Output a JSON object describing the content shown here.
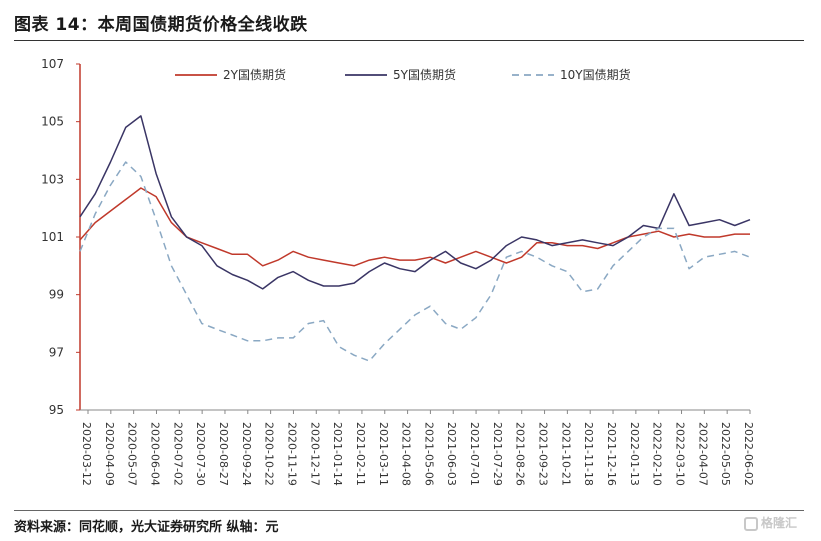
{
  "figure_title": "图表 14：本周国债期货价格全线收跌",
  "source_note": "资料来源：同花顺，光大证券研究所 纵轴：元",
  "watermark": "格隆汇",
  "chart_data": {
    "type": "line",
    "title": "",
    "xlabel": "",
    "ylabel": "",
    "ylim": [
      95,
      107
    ],
    "yticks": [
      95,
      97,
      99,
      101,
      103,
      105,
      107
    ],
    "x_tick_labels": [
      "2020-03-12",
      "2020-04-09",
      "2020-05-07",
      "2020-06-04",
      "2020-07-02",
      "2020-07-30",
      "2020-08-27",
      "2020-09-24",
      "2020-10-22",
      "2020-11-19",
      "2020-12-17",
      "2021-01-14",
      "2021-02-11",
      "2021-03-11",
      "2021-04-08",
      "2021-05-06",
      "2021-06-03",
      "2021-07-01",
      "2021-07-29",
      "2021-08-26",
      "2021-09-23",
      "2021-10-21",
      "2021-11-18",
      "2021-12-16",
      "2022-01-13",
      "2022-02-10",
      "2022-03-10",
      "2022-04-07",
      "2022-05-05",
      "2022-06-02"
    ],
    "grid": false,
    "legend_position": "top",
    "series": [
      {
        "name": "2Y国债期货",
        "color": "#c0392b",
        "style": "solid",
        "values": [
          100.9,
          101.5,
          101.9,
          102.3,
          102.7,
          102.4,
          101.5,
          101.0,
          100.8,
          100.6,
          100.4,
          100.4,
          100.0,
          100.2,
          100.5,
          100.3,
          100.2,
          100.1,
          100.0,
          100.2,
          100.3,
          100.2,
          100.2,
          100.3,
          100.1,
          100.3,
          100.5,
          100.3,
          100.1,
          100.3,
          100.8,
          100.8,
          100.7,
          100.7,
          100.6,
          100.8,
          101.0,
          101.1,
          101.2,
          101.0,
          101.1,
          101.0,
          101.0,
          101.1,
          101.1
        ]
      },
      {
        "name": "5Y国债期货",
        "color": "#3a3565",
        "style": "solid",
        "values": [
          101.7,
          102.5,
          103.6,
          104.8,
          105.2,
          103.2,
          101.7,
          101.0,
          100.7,
          100.0,
          99.7,
          99.5,
          99.2,
          99.6,
          99.8,
          99.5,
          99.3,
          99.3,
          99.4,
          99.8,
          100.1,
          99.9,
          99.8,
          100.2,
          100.5,
          100.1,
          99.9,
          100.2,
          100.7,
          101.0,
          100.9,
          100.7,
          100.8,
          100.9,
          100.8,
          100.7,
          101.0,
          101.4,
          101.3,
          102.5,
          101.4,
          101.5,
          101.6,
          101.4,
          101.6
        ]
      },
      {
        "name": "10Y国债期货",
        "color": "#8aa8c3",
        "style": "dashed",
        "values": [
          100.5,
          101.8,
          102.8,
          103.6,
          103.1,
          101.6,
          100.0,
          99.0,
          98.0,
          97.8,
          97.6,
          97.4,
          97.4,
          97.5,
          97.5,
          98.0,
          98.1,
          97.2,
          96.9,
          96.7,
          97.3,
          97.8,
          98.3,
          98.6,
          98.0,
          97.8,
          98.2,
          99.0,
          100.3,
          100.5,
          100.3,
          100.0,
          99.8,
          99.1,
          99.2,
          100.0,
          100.5,
          101.0,
          101.3,
          101.3,
          99.9,
          100.3,
          100.4,
          100.5,
          100.3
        ]
      }
    ]
  }
}
